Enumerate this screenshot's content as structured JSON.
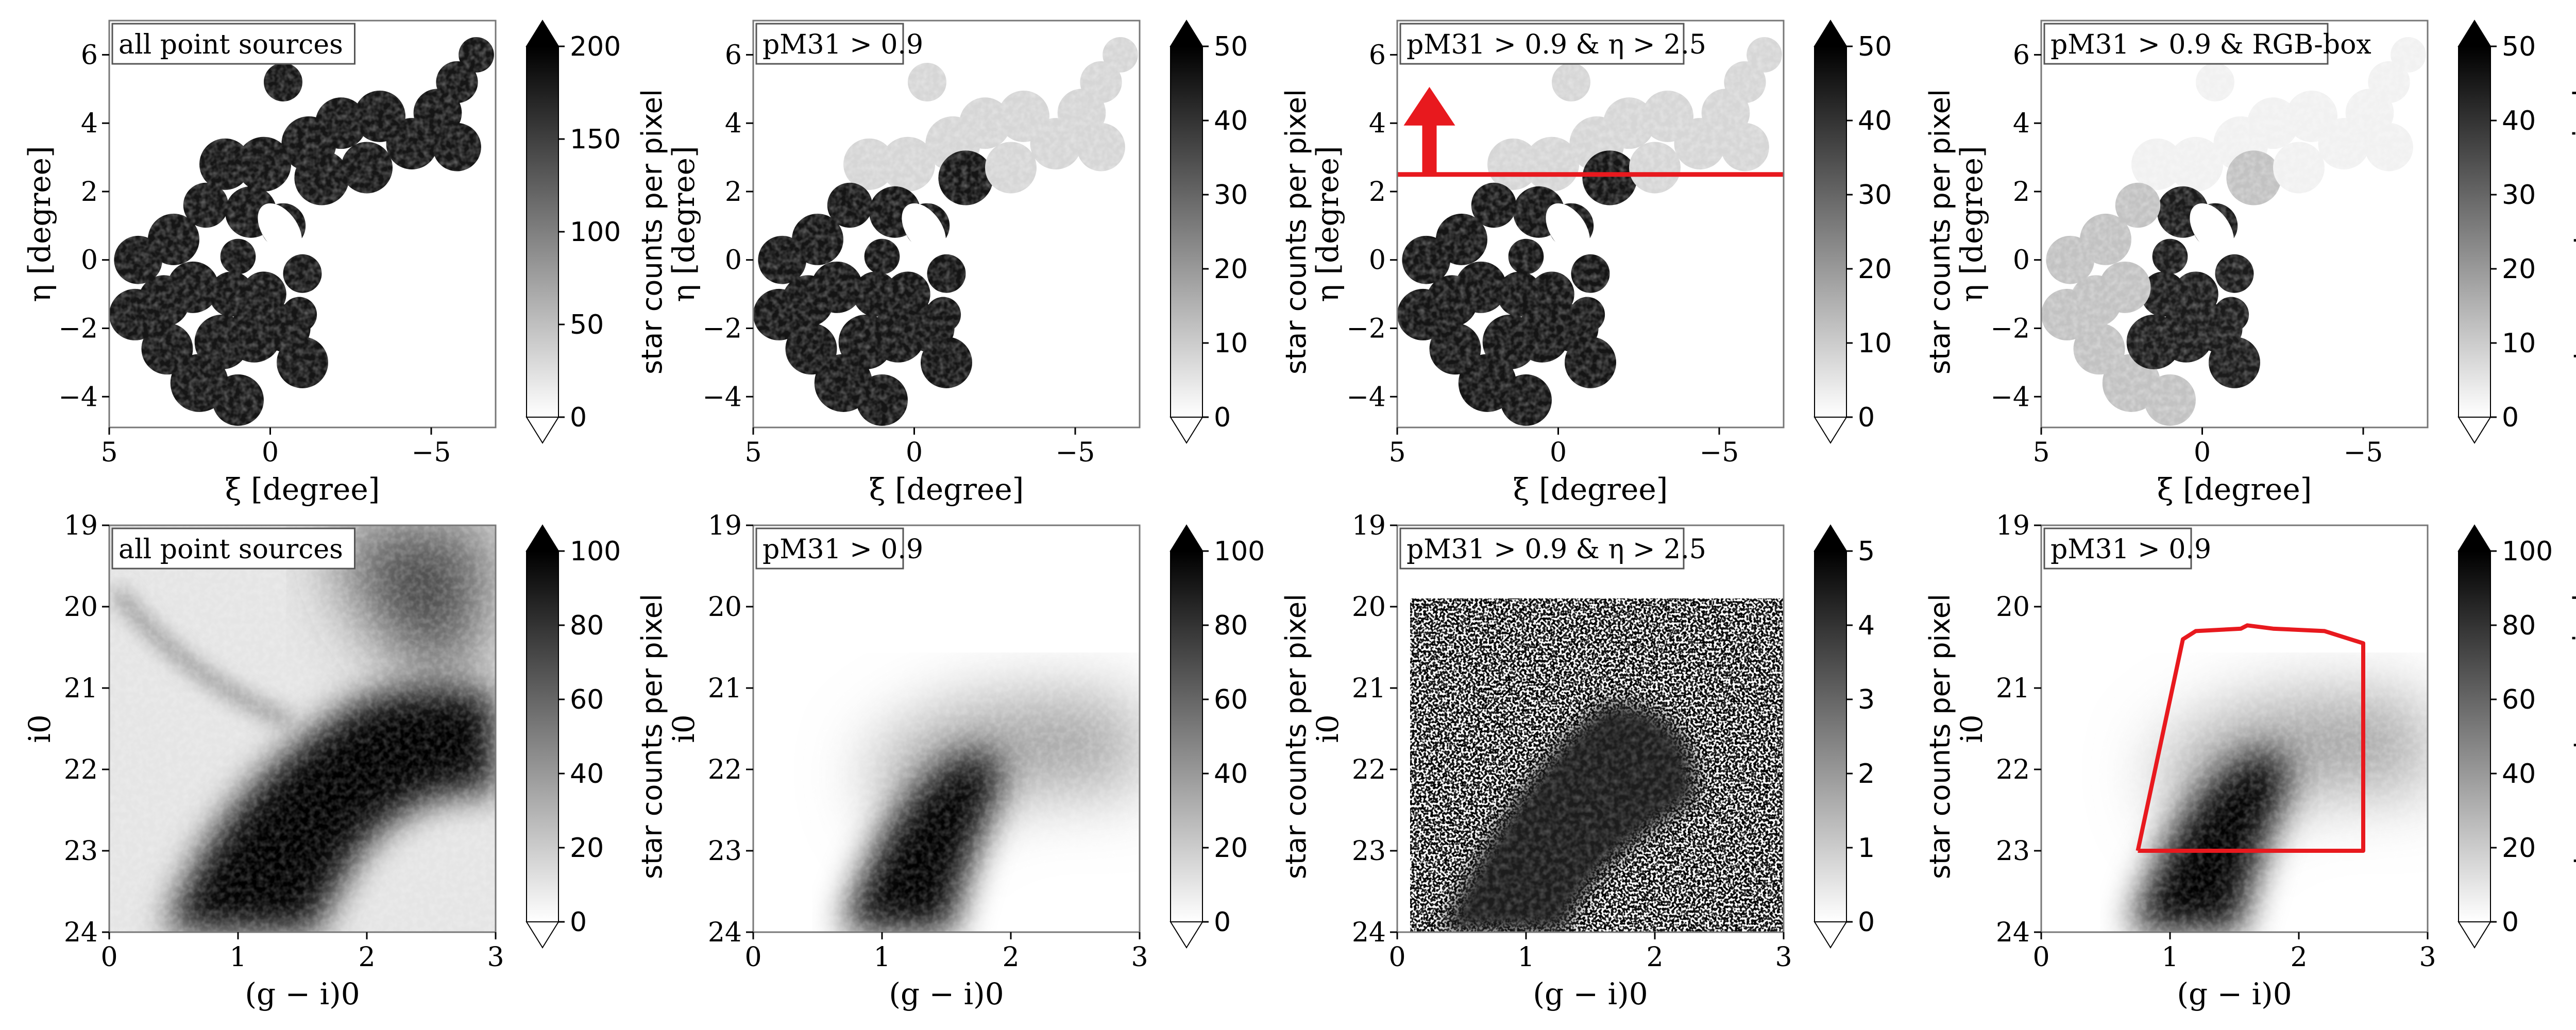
{
  "chart_data": [
    {
      "type": "heatmap",
      "label": "all point sources",
      "xlabel": "ξ [degree]",
      "ylabel": "η [degree]",
      "x_ticks": [
        "5",
        "0",
        "−5"
      ],
      "y_ticks": [
        "6",
        "4",
        "2",
        "0",
        "−2",
        "−4"
      ],
      "xlim": [
        5,
        -7
      ],
      "ylim": [
        -4.9,
        7
      ],
      "colorbar": {
        "label": "star counts per pixel",
        "ticks": [
          "0",
          "50",
          "100",
          "150",
          "200"
        ],
        "range": [
          0,
          200
        ]
      },
      "shade": "heavy"
    },
    {
      "type": "heatmap",
      "label": "pM31 > 0.9",
      "xlabel": "ξ [degree]",
      "ylabel": "η [degree]",
      "x_ticks": [
        "5",
        "0",
        "−5"
      ],
      "y_ticks": [
        "6",
        "4",
        "2",
        "0",
        "−2",
        "−4"
      ],
      "xlim": [
        5,
        -7
      ],
      "ylim": [
        -4.9,
        7
      ],
      "colorbar": {
        "label": "star counts per pixel",
        "ticks": [
          "0",
          "10",
          "20",
          "30",
          "40",
          "50"
        ],
        "range": [
          0,
          50
        ]
      },
      "shade": "split"
    },
    {
      "type": "heatmap",
      "label": "pM31 > 0.9 & η > 2.5",
      "xlabel": "ξ [degree]",
      "ylabel": "η [degree]",
      "x_ticks": [
        "5",
        "0",
        "−5"
      ],
      "y_ticks": [
        "6",
        "4",
        "2",
        "0",
        "−2",
        "−4"
      ],
      "xlim": [
        5,
        -7
      ],
      "ylim": [
        -4.9,
        7
      ],
      "colorbar": {
        "label": "star counts per pixel",
        "ticks": [
          "0",
          "10",
          "20",
          "30",
          "40",
          "50"
        ],
        "range": [
          0,
          50
        ]
      },
      "shade": "split",
      "cut_line": {
        "eta": 2.5,
        "color": "#e8191e"
      },
      "arrow": {
        "xi": 4,
        "color": "#e8191e"
      }
    },
    {
      "type": "heatmap",
      "label": "pM31 > 0.9 & RGB-box",
      "xlabel": "ξ [degree]",
      "ylabel": "η [degree]",
      "x_ticks": [
        "5",
        "0",
        "−5"
      ],
      "y_ticks": [
        "6",
        "4",
        "2",
        "0",
        "−2",
        "−4"
      ],
      "xlim": [
        5,
        -7
      ],
      "ylim": [
        -4.9,
        7
      ],
      "colorbar": {
        "label": "star counts per pixel",
        "ticks": [
          "0",
          "10",
          "20",
          "30",
          "40",
          "50"
        ],
        "range": [
          0,
          50
        ]
      },
      "shade": "rgb"
    },
    {
      "type": "heatmap",
      "label": "all point sources",
      "xlabel": "(g − i)0",
      "ylabel": "i0",
      "x_ticks": [
        "0",
        "1",
        "2",
        "3"
      ],
      "y_ticks": [
        "19",
        "20",
        "21",
        "22",
        "23",
        "24"
      ],
      "xlim": [
        0,
        3
      ],
      "ylim": [
        24,
        19
      ],
      "colorbar": {
        "label": "star counts per pixel",
        "ticks": [
          "0",
          "20",
          "40",
          "60",
          "80",
          "100"
        ],
        "range": [
          0,
          100
        ]
      },
      "shade": "cmd_all"
    },
    {
      "type": "heatmap",
      "label": "pM31 > 0.9",
      "xlabel": "(g − i)0",
      "ylabel": "i0",
      "x_ticks": [
        "0",
        "1",
        "2",
        "3"
      ],
      "y_ticks": [
        "19",
        "20",
        "21",
        "22",
        "23",
        "24"
      ],
      "xlim": [
        0,
        3
      ],
      "ylim": [
        24,
        19
      ],
      "colorbar": {
        "label": "star counts per pixel",
        "ticks": [
          "0",
          "20",
          "40",
          "60",
          "80",
          "100"
        ],
        "range": [
          0,
          100
        ]
      },
      "shade": "cmd_m31"
    },
    {
      "type": "heatmap",
      "label": "pM31 > 0.9 & η > 2.5",
      "xlabel": "(g − i)0",
      "ylabel": "i0",
      "x_ticks": [
        "0",
        "1",
        "2",
        "3"
      ],
      "y_ticks": [
        "19",
        "20",
        "21",
        "22",
        "23",
        "24"
      ],
      "xlim": [
        0,
        3
      ],
      "ylim": [
        24,
        19
      ],
      "colorbar": {
        "label": "star counts per pixel",
        "ticks": [
          "0",
          "1",
          "2",
          "3",
          "4",
          "5"
        ],
        "range": [
          0,
          5
        ]
      },
      "shade": "cmd_halo"
    },
    {
      "type": "heatmap",
      "label": "pM31 > 0.9",
      "xlabel": "(g − i)0",
      "ylabel": "i0",
      "x_ticks": [
        "0",
        "1",
        "2",
        "3"
      ],
      "y_ticks": [
        "19",
        "20",
        "21",
        "22",
        "23",
        "24"
      ],
      "xlim": [
        0,
        3
      ],
      "ylim": [
        24,
        19
      ],
      "colorbar": {
        "label": "star counts per pixel",
        "ticks": [
          "0",
          "20",
          "40",
          "60",
          "80",
          "100"
        ],
        "range": [
          0,
          100
        ]
      },
      "shade": "cmd_m31",
      "rgb_box": {
        "color": "#e8191e",
        "points": [
          [
            0.75,
            23.0
          ],
          [
            2.5,
            23.0
          ],
          [
            2.5,
            20.45
          ],
          [
            2.2,
            20.3
          ],
          [
            1.8,
            20.27
          ],
          [
            1.6,
            20.23
          ],
          [
            1.55,
            20.27
          ],
          [
            1.2,
            20.3
          ],
          [
            1.1,
            20.4
          ],
          [
            0.75,
            23.0
          ]
        ]
      }
    }
  ]
}
